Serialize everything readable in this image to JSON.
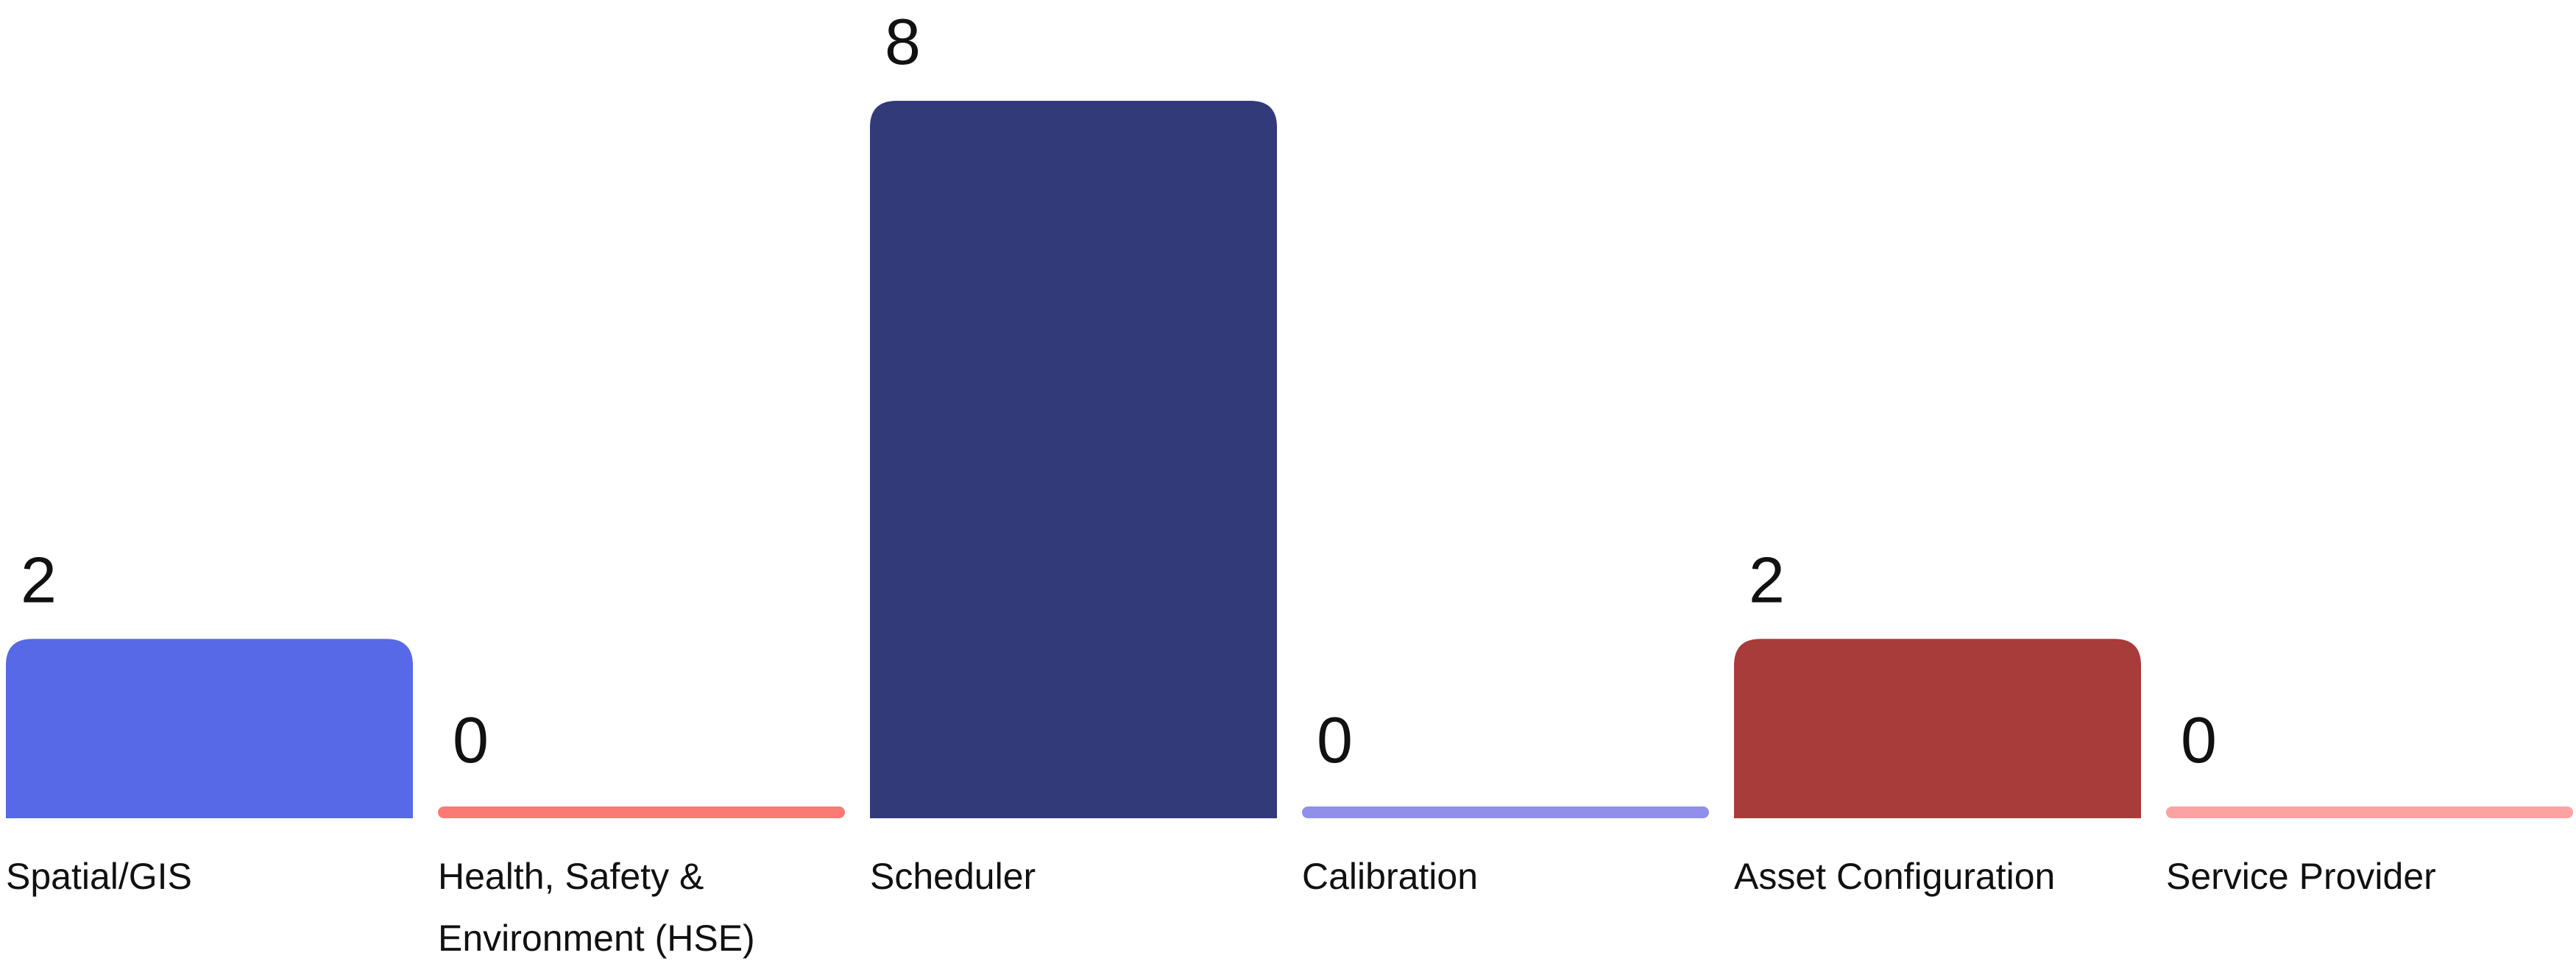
{
  "chart_data": {
    "type": "bar",
    "title": "",
    "xlabel": "",
    "ylabel": "",
    "ylim": [
      0,
      8
    ],
    "grid": false,
    "legend": "none",
    "categories": [
      [
        "Spatial/GIS"
      ],
      [
        "Health, Safety &",
        "Environment (HSE)"
      ],
      [
        "Scheduler"
      ],
      [
        "Calibration"
      ],
      [
        "Asset Configuration"
      ],
      [
        "Service Provider"
      ]
    ],
    "values": [
      2,
      0,
      8,
      0,
      2,
      0
    ],
    "colors": [
      "#5769e6",
      "#fb7a75",
      "#323a7a",
      "#9090ea",
      "#a83c3a",
      "#fda2a2"
    ]
  }
}
